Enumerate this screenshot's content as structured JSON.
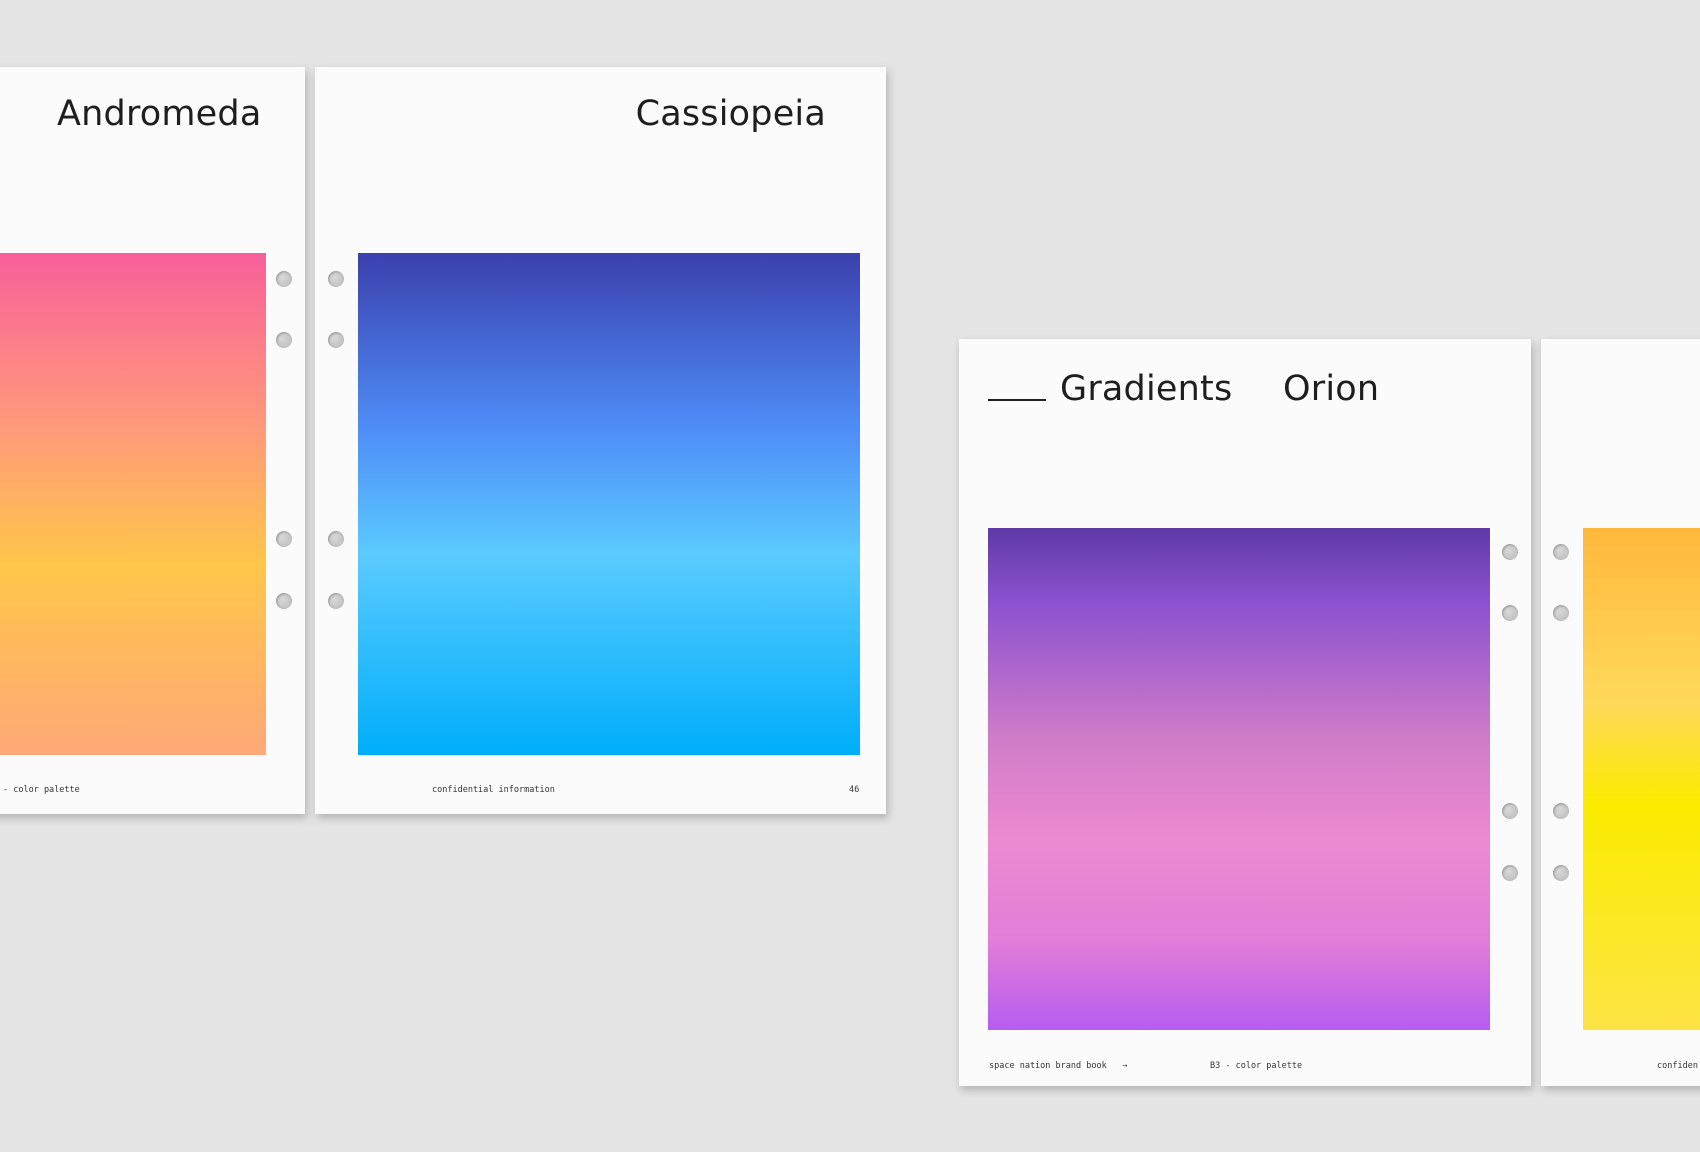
{
  "pages": [
    {
      "title": "Andromeda",
      "footer_left": "- color palette",
      "gradient": [
        "#f7609a",
        "#ff9a7a",
        "#ffc64a",
        "#ffa878"
      ]
    },
    {
      "title": "Cassiopeia",
      "footer_center": "confidential information",
      "page_number": "46",
      "gradient": [
        "#3b40ae",
        "#4f8df7",
        "#5bcaff",
        "#00aefa"
      ]
    },
    {
      "title_prefix": "Gradients",
      "title": "Orion",
      "footer_left": "space nation brand book",
      "footer_arrow": "→",
      "footer_center": "B3 - color palette",
      "gradient": [
        "#5f3aa6",
        "#8c52cf",
        "#d07cc8",
        "#ec8ad0",
        "#e27ed8",
        "#b65cf0"
      ]
    },
    {
      "footer_center": "confiden",
      "gradient": [
        "#ffb83c",
        "#ffd95a",
        "#fbec00",
        "#fde446"
      ]
    }
  ]
}
